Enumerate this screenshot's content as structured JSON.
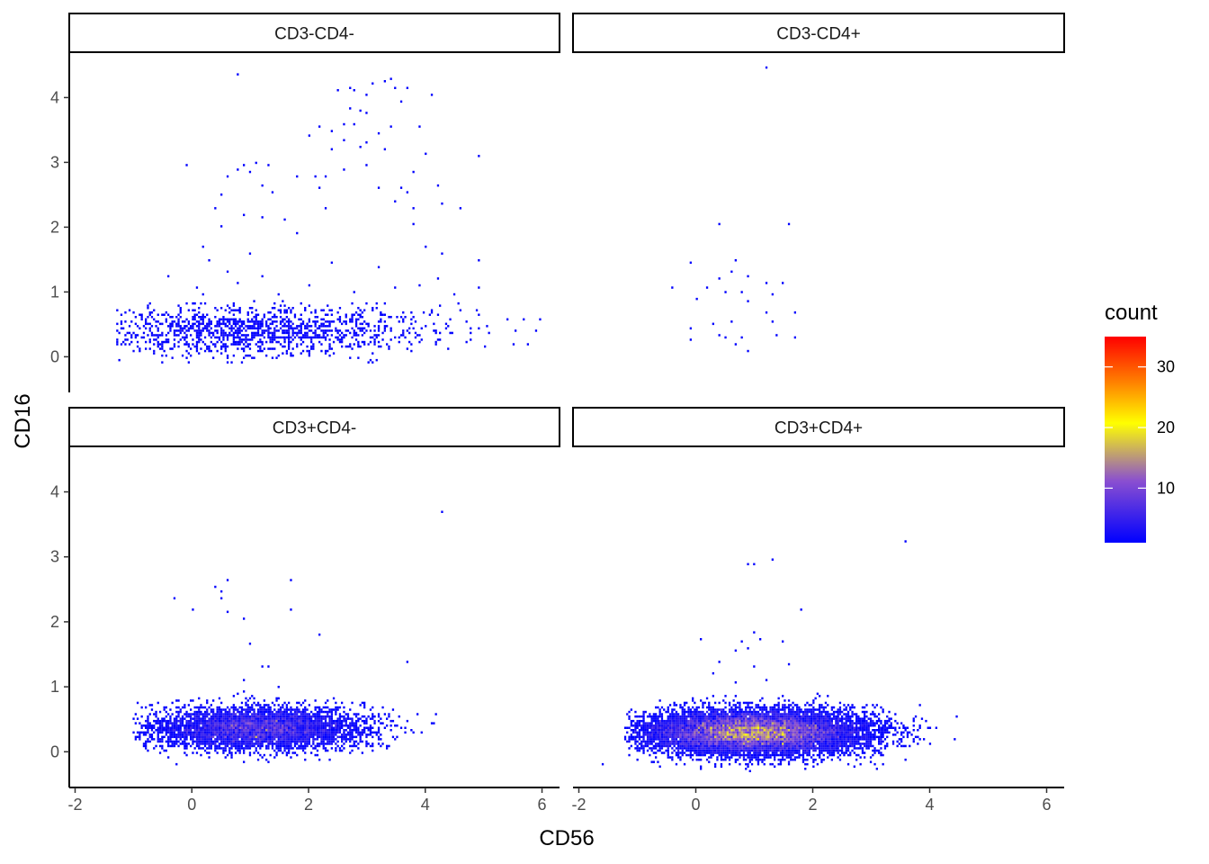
{
  "chart_data": {
    "type": "heatmap",
    "title": "",
    "xlabel": "CD56",
    "ylabel": "CD16",
    "xlim": [
      -2.1,
      6.3
    ],
    "ylim": [
      -0.55,
      4.7
    ],
    "x_ticks": [
      -2,
      0,
      2,
      4,
      6
    ],
    "x_tick_labels": [
      "-2",
      "0",
      "2",
      "4",
      "6"
    ],
    "y_ticks": [
      0,
      1,
      2,
      3,
      4
    ],
    "y_tick_labels": [
      "0",
      "1",
      "2",
      "3",
      "4"
    ],
    "grid": false,
    "facet_layout": "2x2",
    "legend": {
      "title": "count",
      "position": "right",
      "range": [
        1,
        35
      ],
      "ticks": [
        10,
        20,
        30
      ],
      "tick_labels": [
        "10",
        "20",
        "30"
      ],
      "colors": [
        "#0000ff",
        "#8a4fd0",
        "#ffff00",
        "#ff8000",
        "#ff0000"
      ]
    },
    "panels": [
      {
        "label": "CD3-CD4-",
        "cluster": {
          "n": 1300,
          "cx": 1.0,
          "cy": 0.4,
          "sx": 1.55,
          "sy": 0.2,
          "xmin": -1.3,
          "xmax": 6.0,
          "ymin": -0.1,
          "ymax": 0.85
        },
        "outliers": [
          [
            0.8,
            4.35
          ],
          [
            2.5,
            4.1
          ],
          [
            2.7,
            4.15
          ],
          [
            2.8,
            4.12
          ],
          [
            3.0,
            4.05
          ],
          [
            3.1,
            4.2
          ],
          [
            3.3,
            4.25
          ],
          [
            3.4,
            4.3
          ],
          [
            3.5,
            4.15
          ],
          [
            3.7,
            4.15
          ],
          [
            4.1,
            4.05
          ],
          [
            3.6,
            3.95
          ],
          [
            2.7,
            3.85
          ],
          [
            2.9,
            3.8
          ],
          [
            3.0,
            3.75
          ],
          [
            2.4,
            3.5
          ],
          [
            2.2,
            3.55
          ],
          [
            2.0,
            3.4
          ],
          [
            2.6,
            3.6
          ],
          [
            2.8,
            3.6
          ],
          [
            3.9,
            3.55
          ],
          [
            3.4,
            3.55
          ],
          [
            3.2,
            3.45
          ],
          [
            2.6,
            3.35
          ],
          [
            3.0,
            3.3
          ],
          [
            -0.1,
            2.95
          ],
          [
            1.1,
            3.0
          ],
          [
            0.9,
            2.95
          ],
          [
            1.3,
            2.95
          ],
          [
            0.8,
            2.9
          ],
          [
            2.4,
            3.2
          ],
          [
            2.9,
            3.25
          ],
          [
            4.0,
            3.15
          ],
          [
            4.9,
            3.1
          ],
          [
            2.1,
            2.8
          ],
          [
            2.3,
            2.8
          ],
          [
            0.6,
            2.8
          ],
          [
            1.0,
            2.85
          ],
          [
            3.0,
            2.95
          ],
          [
            3.8,
            2.85
          ],
          [
            1.8,
            2.8
          ],
          [
            1.2,
            2.65
          ],
          [
            2.2,
            2.6
          ],
          [
            3.2,
            2.6
          ],
          [
            3.6,
            2.6
          ],
          [
            3.7,
            2.55
          ],
          [
            4.2,
            2.65
          ],
          [
            0.5,
            2.5
          ],
          [
            1.4,
            2.55
          ],
          [
            3.5,
            2.4
          ],
          [
            4.3,
            2.35
          ],
          [
            0.4,
            2.3
          ],
          [
            0.9,
            2.2
          ],
          [
            1.2,
            2.15
          ],
          [
            1.6,
            2.1
          ],
          [
            2.3,
            2.3
          ],
          [
            3.8,
            2.3
          ],
          [
            4.6,
            2.3
          ],
          [
            0.5,
            2.0
          ],
          [
            0.2,
            1.7
          ],
          [
            1.8,
            1.9
          ],
          [
            3.8,
            2.05
          ],
          [
            4.0,
            1.7
          ],
          [
            0.3,
            1.5
          ],
          [
            0.6,
            1.3
          ],
          [
            1.2,
            1.25
          ],
          [
            2.4,
            1.45
          ],
          [
            3.2,
            1.4
          ],
          [
            3.9,
            1.1
          ],
          [
            4.9,
            1.5
          ],
          [
            1.0,
            1.6
          ],
          [
            4.3,
            1.6
          ],
          [
            -0.4,
            1.25
          ],
          [
            0.8,
            1.15
          ],
          [
            2.0,
            1.1
          ],
          [
            4.2,
            1.2
          ],
          [
            4.9,
            1.05
          ],
          [
            2.8,
            1.0
          ],
          [
            4.5,
            0.95
          ],
          [
            1.5,
            0.95
          ],
          [
            3.5,
            1.05
          ],
          [
            0.2,
            0.95
          ],
          [
            2.6,
            2.9
          ],
          [
            3.3,
            3.2
          ],
          [
            0.1,
            1.05
          ]
        ]
      },
      {
        "label": "CD3-CD4+",
        "cluster": {
          "n": 0,
          "cx": 1.0,
          "cy": 0.4,
          "sx": 1.0,
          "sy": 0.3,
          "xmin": -1.0,
          "xmax": 2.0,
          "ymin": 0.0,
          "ymax": 1.0
        },
        "outliers": [
          [
            1.2,
            4.45
          ],
          [
            0.4,
            2.05
          ],
          [
            1.6,
            2.05
          ],
          [
            -0.1,
            1.45
          ],
          [
            0.7,
            1.5
          ],
          [
            0.6,
            1.3
          ],
          [
            0.4,
            1.2
          ],
          [
            0.9,
            1.25
          ],
          [
            1.2,
            1.15
          ],
          [
            1.5,
            1.15
          ],
          [
            -0.4,
            1.05
          ],
          [
            0.2,
            1.05
          ],
          [
            0.5,
            1.0
          ],
          [
            0.8,
            1.0
          ],
          [
            1.3,
            0.95
          ],
          [
            0.0,
            0.9
          ],
          [
            0.9,
            0.85
          ],
          [
            1.2,
            0.7
          ],
          [
            1.7,
            0.7
          ],
          [
            0.6,
            0.55
          ],
          [
            1.3,
            0.55
          ],
          [
            0.3,
            0.5
          ],
          [
            -0.1,
            0.45
          ],
          [
            1.4,
            0.35
          ],
          [
            0.4,
            0.35
          ],
          [
            0.5,
            0.3
          ],
          [
            0.8,
            0.3
          ],
          [
            1.7,
            0.3
          ],
          [
            -0.1,
            0.25
          ],
          [
            0.7,
            0.2
          ],
          [
            0.9,
            0.1
          ]
        ]
      },
      {
        "label": "CD3+CD4-",
        "cluster": {
          "n": 5200,
          "cx": 1.15,
          "cy": 0.36,
          "sx": 0.9,
          "sy": 0.16,
          "xmin": -1.0,
          "xmax": 4.4,
          "ymin": -0.25,
          "ymax": 0.95
        },
        "outliers": [
          [
            4.3,
            3.7
          ],
          [
            0.6,
            2.65
          ],
          [
            1.7,
            2.65
          ],
          [
            0.4,
            2.55
          ],
          [
            0.5,
            2.45
          ],
          [
            0.5,
            2.35
          ],
          [
            -0.3,
            2.35
          ],
          [
            0.6,
            2.15
          ],
          [
            0.0,
            2.2
          ],
          [
            0.9,
            2.05
          ],
          [
            1.7,
            2.2
          ],
          [
            2.2,
            1.8
          ],
          [
            1.0,
            1.65
          ],
          [
            1.2,
            1.3
          ],
          [
            1.3,
            1.3
          ],
          [
            3.7,
            1.4
          ],
          [
            0.9,
            1.1
          ],
          [
            1.5,
            1.0
          ]
        ]
      },
      {
        "label": "CD3+CD4+",
        "cluster": {
          "n": 12000,
          "cx": 1.0,
          "cy": 0.3,
          "sx": 0.95,
          "sy": 0.17,
          "xmin": -1.2,
          "xmax": 4.7,
          "ymin": -0.3,
          "ymax": 0.95
        },
        "outliers": [
          [
            3.6,
            3.25
          ],
          [
            0.9,
            2.9
          ],
          [
            1.0,
            2.9
          ],
          [
            1.3,
            2.95
          ],
          [
            1.8,
            2.2
          ],
          [
            1.0,
            1.85
          ],
          [
            1.1,
            1.75
          ],
          [
            0.1,
            1.75
          ],
          [
            0.8,
            1.7
          ],
          [
            0.9,
            1.6
          ],
          [
            0.7,
            1.55
          ],
          [
            1.5,
            1.7
          ],
          [
            0.4,
            1.4
          ],
          [
            1.0,
            1.3
          ],
          [
            0.3,
            1.2
          ],
          [
            1.6,
            1.35
          ],
          [
            1.2,
            1.1
          ],
          [
            0.7,
            1.05
          ],
          [
            -1.6,
            -0.2
          ]
        ]
      }
    ]
  }
}
